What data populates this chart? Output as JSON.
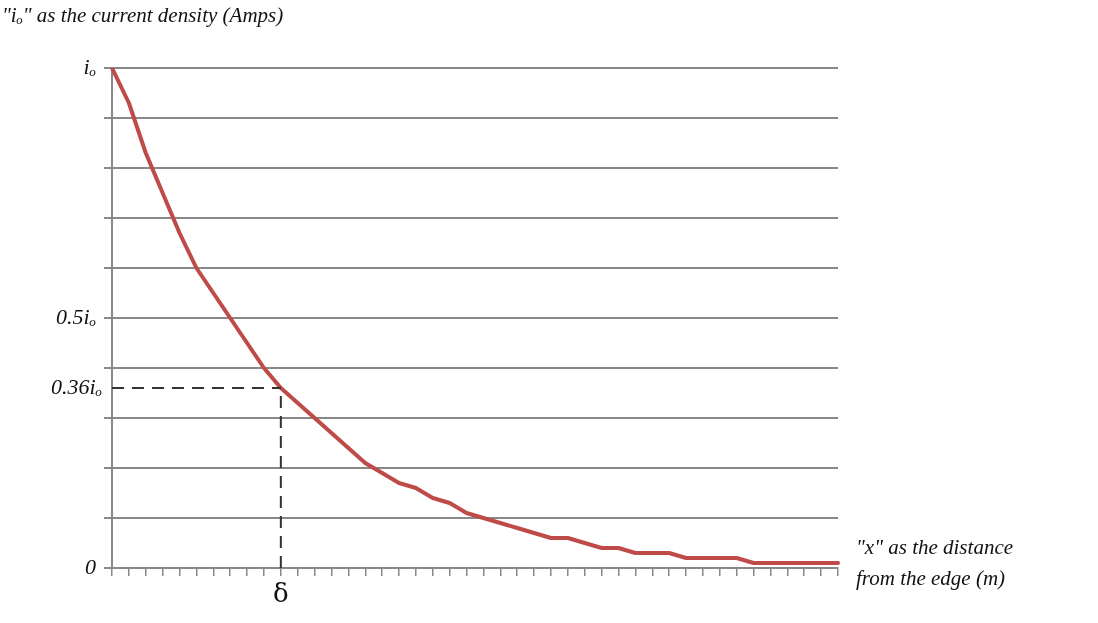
{
  "chart_data": {
    "type": "line",
    "ylabel": "\"iₒ\" as the current density  (Amps)",
    "xlabel": "\"x\" as the distance\nfrom the edge   (m)",
    "categories": [
      null,
      null,
      null,
      null,
      null,
      null,
      null,
      null,
      null,
      null,
      "δ",
      null,
      null,
      null,
      null,
      null,
      null,
      null,
      null,
      null,
      null,
      null,
      null,
      null,
      null,
      null,
      null,
      null,
      null,
      null,
      null,
      null,
      null,
      null,
      null,
      null,
      null,
      null,
      null,
      null,
      null,
      null,
      null,
      null
    ],
    "series": [
      {
        "color": "#be4b48",
        "values": [
          1.0,
          0.93,
          0.83,
          0.75,
          0.67,
          0.6,
          0.55,
          0.5,
          0.45,
          0.4,
          0.36,
          0.33,
          0.3,
          0.27,
          0.24,
          0.21,
          0.19,
          0.17,
          0.16,
          0.14,
          0.13,
          0.11,
          0.1,
          0.09,
          0.08,
          0.07,
          0.06,
          0.06,
          0.05,
          0.04,
          0.04,
          0.03,
          0.03,
          0.03,
          0.02,
          0.02,
          0.02,
          0.02,
          0.01,
          0.01,
          0.01,
          0.01,
          0.01,
          0.01
        ]
      }
    ],
    "ylim": [
      0,
      1
    ],
    "yticks": [
      {
        "value": 0,
        "label": "0"
      },
      {
        "value": 0.1,
        "label": null
      },
      {
        "value": 0.2,
        "label": null
      },
      {
        "value": 0.3,
        "label": null
      },
      {
        "value": 0.4,
        "label": null
      },
      {
        "value": 0.5,
        "label": "0.5iₒ"
      },
      {
        "value": 0.6,
        "label": null
      },
      {
        "value": 0.7,
        "label": null
      },
      {
        "value": 0.8,
        "label": null
      },
      {
        "value": 0.9,
        "label": null
      },
      {
        "value": 1,
        "label": "iₒ"
      }
    ],
    "ref_lines": [
      {
        "axis": "y",
        "value": 0.36,
        "label": "0.36iₒ",
        "color": "#333333",
        "line_style": "dashed"
      },
      {
        "axis": "x",
        "value": "δ",
        "color": "#333333",
        "line_style": "dashed"
      }
    ],
    "grid": "y",
    "marker": "none",
    "line_style": "solid",
    "legend": false
  }
}
